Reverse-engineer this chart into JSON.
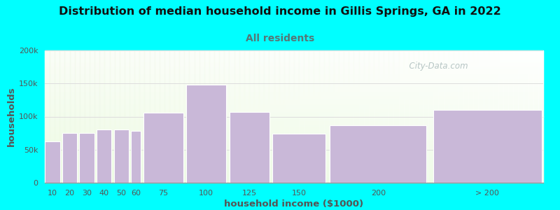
{
  "title": "Distribution of median household income in Gillis Springs, GA in 2022",
  "subtitle": "All residents",
  "xlabel": "household income ($1000)",
  "ylabel": "households",
  "title_fontsize": 11.5,
  "subtitle_fontsize": 10,
  "axis_label_fontsize": 9.5,
  "tick_fontsize": 8,
  "background_color": "#00FFFF",
  "bar_color": "#c9b8d8",
  "bar_edge_color": "#ffffff",
  "title_color": "#111111",
  "subtitle_color": "#557777",
  "axis_label_color": "#555555",
  "categories": [
    "10",
    "20",
    "30",
    "40",
    "50",
    "60",
    "75",
    "100",
    "125",
    "150",
    "200",
    "> 200"
  ],
  "values": [
    62000,
    75000,
    75000,
    80000,
    80000,
    78000,
    106000,
    148000,
    107000,
    74000,
    87000,
    110000
  ],
  "lefts": [
    5,
    15,
    25,
    35,
    45,
    55,
    62,
    87,
    112,
    137,
    170,
    230
  ],
  "widths": [
    9,
    9,
    9,
    9,
    9,
    6,
    24,
    24,
    24,
    32,
    58,
    65
  ],
  "ylim": [
    0,
    200000
  ],
  "yticks": [
    0,
    50000,
    100000,
    150000,
    200000
  ],
  "ytick_labels": [
    "0",
    "50k",
    "100k",
    "150k",
    "200k"
  ],
  "watermark": "  City-Data.com",
  "watermark_color": "#aabbbb",
  "grid_color": "#dddddd",
  "plot_xlim": [
    5,
    295
  ]
}
